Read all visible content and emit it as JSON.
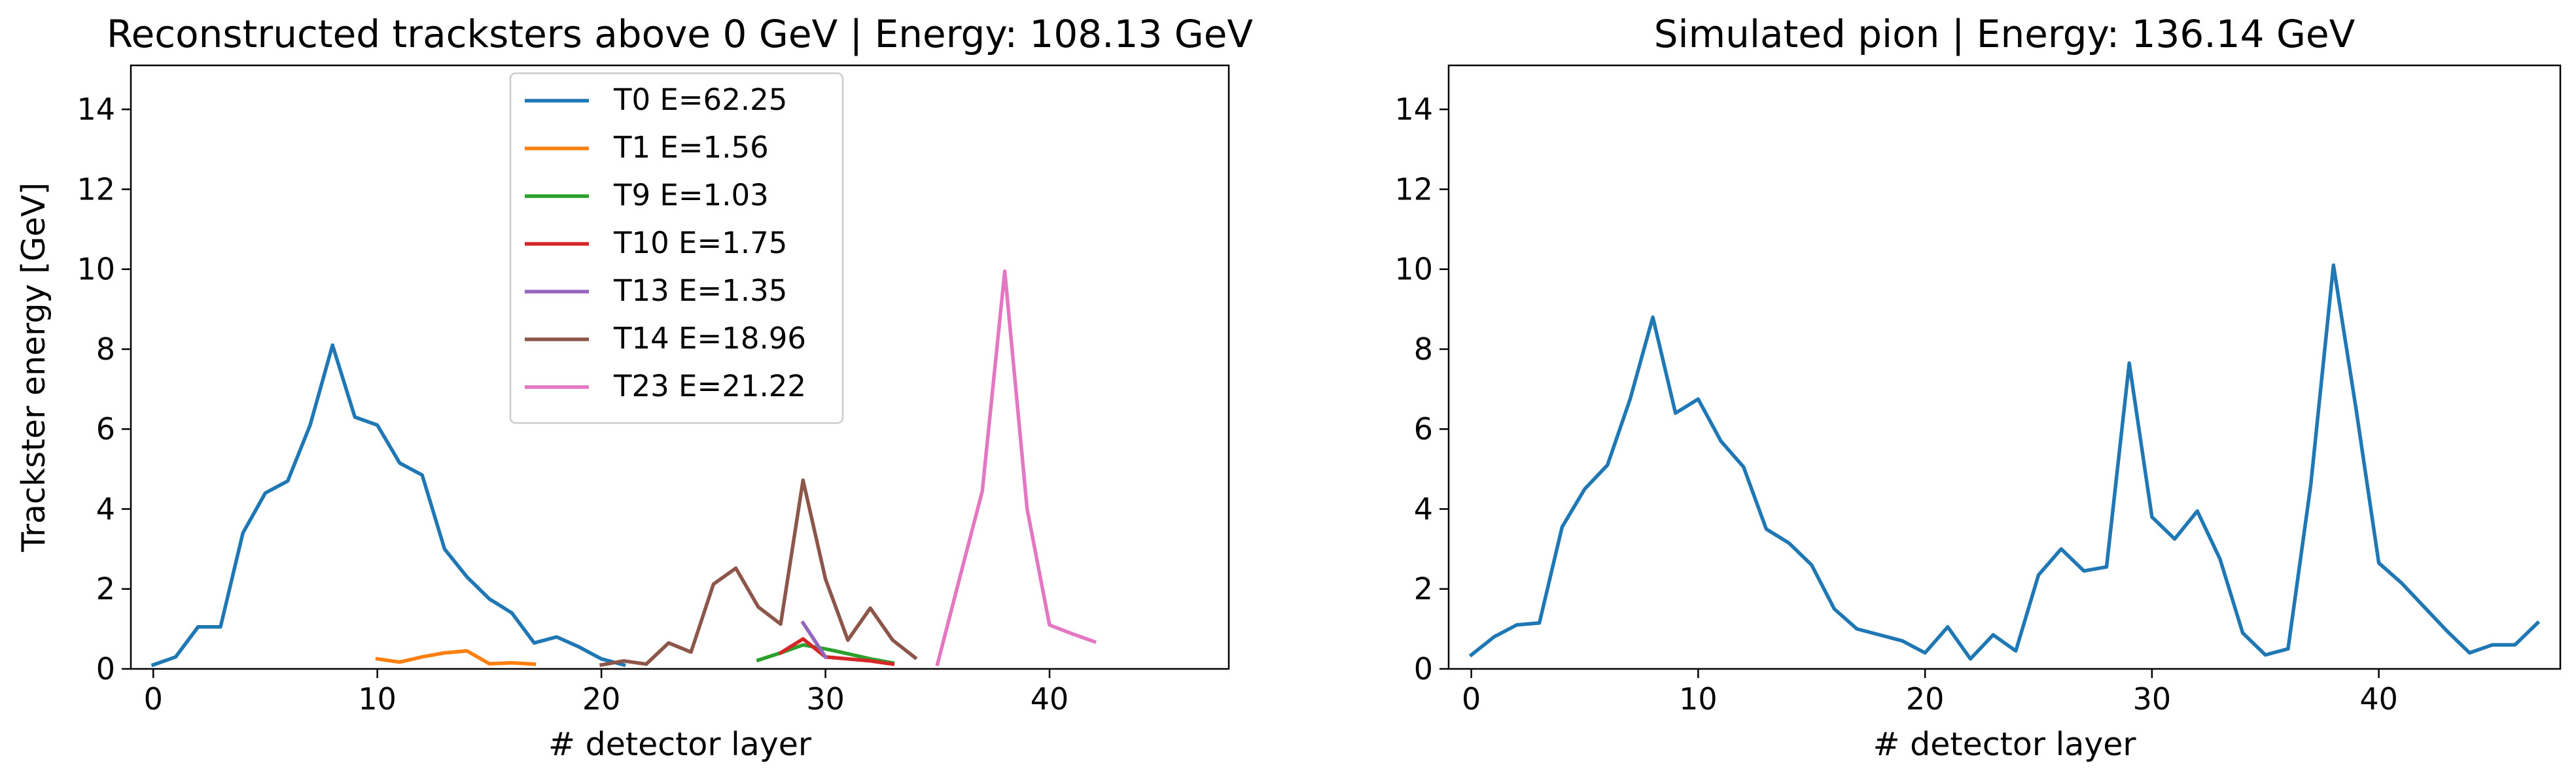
{
  "chart_data": [
    {
      "type": "line",
      "title": "Reconstructed tracksters above 0 GeV | Energy: 108.13 GeV",
      "xlabel": "# detector layer",
      "ylabel": "Trackster energy [GeV]",
      "xlim": [
        -1,
        48
      ],
      "ylim": [
        0,
        15.1
      ],
      "xticks": [
        "0",
        "10",
        "20",
        "30",
        "40"
      ],
      "yticks": [
        "0",
        "2",
        "4",
        "6",
        "8",
        "10",
        "12",
        "14"
      ],
      "grid": false,
      "legend": "top-center",
      "series": [
        {
          "name": "T0 E=62.25",
          "color": "#1f77b4",
          "x": [
            0,
            1,
            2,
            3,
            4,
            5,
            6,
            7,
            8,
            9,
            10,
            11,
            12,
            13,
            14,
            15,
            16,
            17,
            18,
            19,
            20,
            21
          ],
          "y": [
            0.1,
            0.3,
            1.05,
            1.05,
            3.4,
            4.4,
            4.7,
            6.1,
            8.1,
            6.3,
            6.1,
            5.15,
            4.85,
            3.0,
            2.3,
            1.75,
            1.4,
            0.65,
            0.8,
            0.55,
            0.25,
            0.1
          ]
        },
        {
          "name": "T1 E=1.56",
          "color": "#ff7f0e",
          "x": [
            10,
            11,
            12,
            13,
            14,
            15,
            16,
            17
          ],
          "y": [
            0.25,
            0.17,
            0.3,
            0.4,
            0.45,
            0.13,
            0.15,
            0.12
          ]
        },
        {
          "name": "T9 E=1.03",
          "color": "#2ca02c",
          "x": [
            27,
            28,
            29,
            30,
            31,
            32,
            33
          ],
          "y": [
            0.22,
            0.4,
            0.6,
            0.5,
            0.38,
            0.25,
            0.15
          ]
        },
        {
          "name": "T10 E=1.75",
          "color": "#d62728",
          "x": [
            28,
            29,
            30,
            31,
            32,
            33
          ],
          "y": [
            0.4,
            0.75,
            0.3,
            0.25,
            0.2,
            0.12
          ]
        },
        {
          "name": "T13 E=1.35",
          "color": "#9467bd",
          "x": [
            29,
            30
          ],
          "y": [
            1.15,
            0.3
          ]
        },
        {
          "name": "T14 E=18.96",
          "color": "#8c564b",
          "x": [
            20,
            21,
            22,
            23,
            24,
            25,
            26,
            27,
            28,
            29,
            30,
            31,
            32,
            33,
            34
          ],
          "y": [
            0.1,
            0.2,
            0.12,
            0.65,
            0.42,
            2.12,
            2.52,
            1.55,
            1.12,
            4.72,
            2.25,
            0.72,
            1.52,
            0.72,
            0.28
          ]
        },
        {
          "name": "T23 E=21.22",
          "color": "#e377c2",
          "x": [
            35,
            36,
            37,
            38,
            39,
            40,
            41,
            42
          ],
          "y": [
            0.12,
            2.3,
            4.45,
            9.95,
            4.0,
            1.1,
            0.88,
            0.68
          ]
        }
      ]
    },
    {
      "type": "line",
      "title": "Simulated pion | Energy: 136.14 GeV",
      "xlabel": "# detector layer",
      "ylabel": "",
      "xlim": [
        -1,
        48
      ],
      "ylim": [
        0,
        15.1
      ],
      "xticks": [
        "0",
        "10",
        "20",
        "30",
        "40"
      ],
      "yticks": [
        "0",
        "2",
        "4",
        "6",
        "8",
        "10",
        "12",
        "14"
      ],
      "grid": false,
      "series": [
        {
          "color": "#1f77b4",
          "x": [
            0,
            1,
            2,
            3,
            4,
            5,
            6,
            7,
            8,
            9,
            10,
            11,
            12,
            13,
            14,
            15,
            16,
            17,
            18,
            19,
            20,
            21,
            22,
            23,
            24,
            25,
            26,
            27,
            28,
            29,
            30,
            31,
            32,
            33,
            34,
            35,
            36,
            37,
            38,
            39,
            40,
            41,
            42,
            43,
            44,
            45,
            46,
            47
          ],
          "y": [
            0.35,
            0.8,
            1.1,
            1.15,
            3.55,
            4.5,
            5.1,
            6.75,
            8.8,
            6.4,
            6.75,
            5.7,
            5.05,
            3.5,
            3.15,
            2.6,
            1.5,
            1.0,
            0.85,
            0.7,
            0.4,
            1.05,
            0.25,
            0.85,
            0.45,
            2.35,
            3.0,
            2.45,
            2.55,
            7.65,
            3.8,
            3.25,
            3.95,
            2.75,
            0.9,
            0.35,
            0.5,
            4.6,
            10.1,
            6.5,
            2.65,
            2.15,
            1.55,
            0.95,
            0.4,
            0.6,
            0.6,
            1.15
          ]
        }
      ]
    }
  ]
}
